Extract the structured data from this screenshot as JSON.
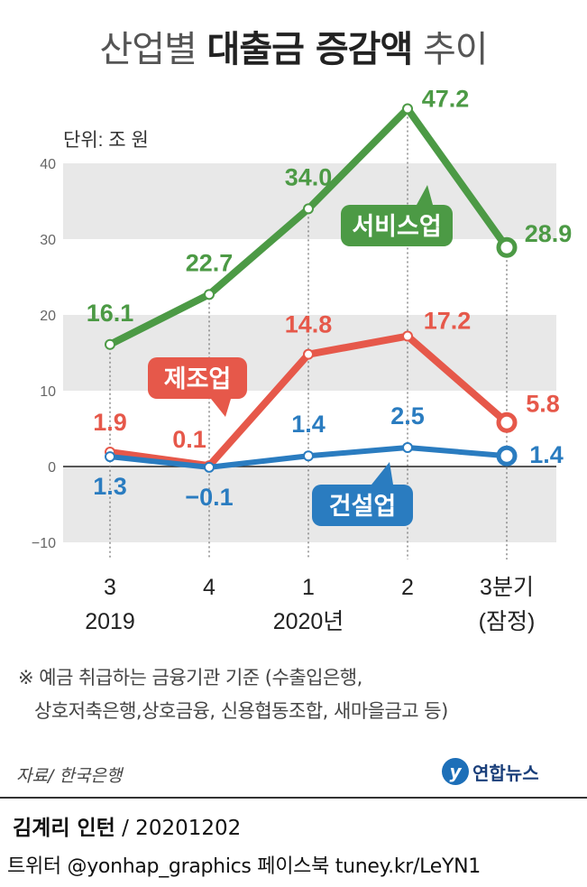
{
  "title_light_1": "산업별 ",
  "title_bold": "대출금 증감액",
  "title_light_2": " 추이",
  "chart_data": {
    "type": "line",
    "unit_label": "단위: 조 원",
    "ylim": [
      -10,
      40
    ],
    "yticks": [
      -10,
      0,
      10,
      20,
      30,
      40
    ],
    "categories": [
      "3",
      "4",
      "1",
      "2",
      "3분기"
    ],
    "category_sub": [
      "",
      "",
      "",
      "",
      "(잠정)"
    ],
    "year_labels": [
      {
        "text": "2019",
        "at": 0
      },
      {
        "text": "2020년",
        "at": 2
      }
    ],
    "series": [
      {
        "name": "서비스업",
        "color": "#4c9a45",
        "values": [
          16.1,
          22.7,
          34.0,
          47.2,
          28.9
        ],
        "labels": [
          "16.1",
          "22.7",
          "34.0",
          "47.2",
          "28.9"
        ]
      },
      {
        "name": "제조업",
        "color": "#e6584a",
        "values": [
          1.9,
          0.1,
          14.8,
          17.2,
          5.8
        ],
        "labels": [
          "1.9",
          "0.1",
          "14.8",
          "17.2",
          "5.8"
        ]
      },
      {
        "name": "건설업",
        "color": "#2a7cc0",
        "values": [
          1.3,
          -0.1,
          1.4,
          2.5,
          1.4
        ],
        "labels": [
          "1.3",
          "−0.1",
          "1.4",
          "2.5",
          "1.4"
        ]
      }
    ]
  },
  "footnote": {
    "line1": "※ 예금 취급하는 금융기관 기준 (수출입은행,",
    "line2": "상호저축은행,상호금융, 신용협동조합, 새마을금고 등)"
  },
  "source": "자료/ 한국은행",
  "logo": {
    "mark": "y",
    "text": "연합뉴스"
  },
  "credit": {
    "author": "김계리 인턴",
    "date": " / 20201202"
  },
  "social": "트위터 @yonhap_graphics  페이스북 tuney.kr/LeYN1"
}
